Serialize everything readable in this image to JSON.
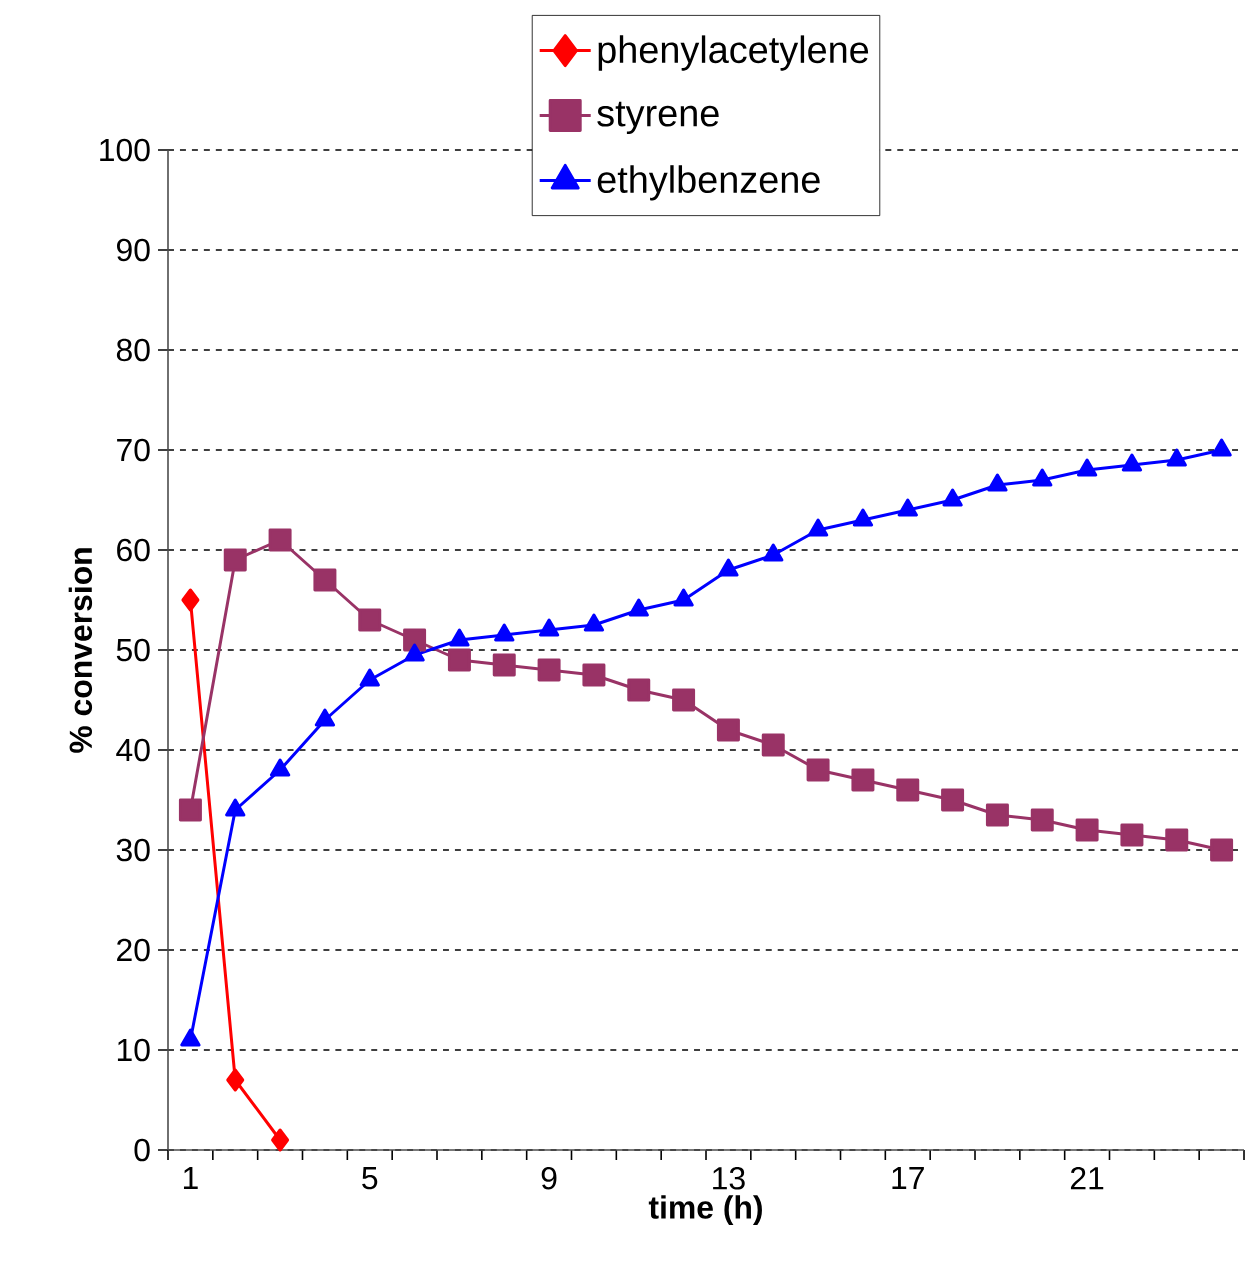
{
  "chart_data": {
    "type": "line",
    "xlabel": "time (h)",
    "ylabel": "% conversion",
    "x": [
      1,
      2,
      3,
      4,
      5,
      6,
      7,
      8,
      9,
      10,
      11,
      12,
      13,
      14,
      15,
      16,
      17,
      18,
      19,
      20,
      21,
      22,
      23,
      24
    ],
    "series": [
      {
        "name": "phenylacetylene",
        "color": "#ff0000",
        "marker": "diamond",
        "x": [
          1,
          2,
          3
        ],
        "values": [
          55,
          7,
          1
        ]
      },
      {
        "name": "styrene",
        "color": "#993366",
        "marker": "square",
        "values": [
          34,
          59,
          61,
          57,
          53,
          51,
          49,
          48.5,
          48,
          47.5,
          46,
          45,
          42,
          40.5,
          38,
          37,
          36,
          35,
          33.5,
          33,
          32,
          31.5,
          31,
          30
        ]
      },
      {
        "name": "ethylbenzene",
        "color": "#0000ff",
        "marker": "triangle",
        "values": [
          11,
          34,
          38,
          43,
          47,
          49.5,
          51,
          51.5,
          52,
          52.5,
          54,
          55,
          58,
          59.5,
          62,
          63,
          64,
          65,
          66.5,
          67,
          68,
          68.5,
          69,
          70
        ]
      }
    ],
    "xlim": [
      0.5,
      24.5
    ],
    "xticks": [
      1,
      5,
      9,
      13,
      17,
      21,
      {
        "value": 0.5,
        "label": null
      },
      {
        "value": 1.5,
        "label": null
      },
      {
        "value": 2.5,
        "label": null
      },
      {
        "value": 3.5,
        "label": null
      },
      {
        "value": 4.5,
        "label": null
      },
      {
        "value": 5.5,
        "label": null
      },
      {
        "value": 6.5,
        "label": null
      },
      {
        "value": 7.5,
        "label": null
      },
      {
        "value": 8.5,
        "label": null
      },
      {
        "value": 9.5,
        "label": null
      },
      {
        "value": 10.5,
        "label": null
      },
      {
        "value": 11.5,
        "label": null
      },
      {
        "value": 12.5,
        "label": null
      },
      {
        "value": 13.5,
        "label": null
      },
      {
        "value": 14.5,
        "label": null
      },
      {
        "value": 15.5,
        "label": null
      },
      {
        "value": 16.5,
        "label": null
      },
      {
        "value": 17.5,
        "label": null
      },
      {
        "value": 18.5,
        "label": null
      },
      {
        "value": 19.5,
        "label": null
      },
      {
        "value": 20.5,
        "label": null
      },
      {
        "value": 21.5,
        "label": null
      },
      {
        "value": 22.5,
        "label": null
      },
      {
        "value": 23.5,
        "label": null
      },
      {
        "value": 24.5,
        "label": null
      }
    ],
    "ylim": [
      0,
      100
    ],
    "yticks": [
      0,
      10,
      20,
      30,
      40,
      50,
      60,
      70,
      80,
      90,
      100
    ],
    "grid": "y",
    "legend": "top",
    "line_style": "solid"
  }
}
